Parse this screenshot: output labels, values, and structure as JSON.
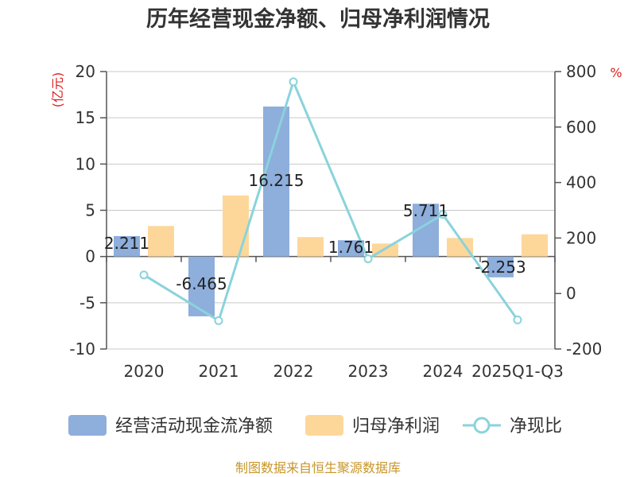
{
  "chart_data": {
    "type": "bar",
    "title": "历年经营现金净额、归母净利润情况",
    "categories": [
      "2020",
      "2021",
      "2022",
      "2023",
      "2024",
      "2025Q1-Q3"
    ],
    "y_left": {
      "unit": "(亿元)",
      "ylim": [
        -10,
        20
      ],
      "ticks": [
        20,
        15,
        10,
        5,
        0,
        -5,
        -10
      ]
    },
    "y_right": {
      "unit": "%",
      "ylim": [
        -200,
        800
      ],
      "ticks": [
        800,
        600,
        400,
        200,
        0,
        -200
      ]
    },
    "series": [
      {
        "name": "经营活动现金流净额",
        "type": "bar",
        "axis": "left",
        "color": "#8eaedc",
        "values": [
          2.211,
          -6.465,
          16.215,
          1.761,
          5.711,
          -2.253
        ],
        "labels": [
          "2.211",
          "-6.465",
          "16.215",
          "1.761",
          "5.711",
          "-2.253"
        ]
      },
      {
        "name": "归母净利润",
        "type": "bar",
        "axis": "left",
        "color": "#fdd79a",
        "values": [
          3.3,
          6.6,
          2.1,
          1.4,
          2.0,
          2.4
        ]
      },
      {
        "name": "净现比",
        "type": "line",
        "axis": "right",
        "color": "#8ad3dc",
        "values": [
          67,
          -98,
          763,
          125,
          285,
          -95
        ]
      }
    ],
    "grid": true,
    "legend_position": "bottom"
  },
  "source": "制图数据来自恒生聚源数据库"
}
